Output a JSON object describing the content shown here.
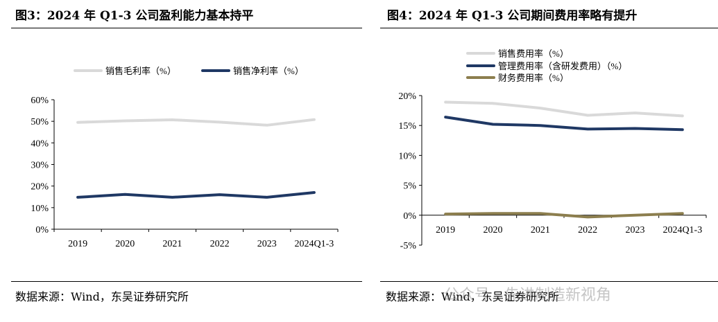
{
  "left": {
    "title": "图3：2024 年 Q1-3 公司盈利能力基本持平",
    "source": "数据来源：Wind，东吴证券研究所",
    "chart_data": {
      "type": "line",
      "categories": [
        "2019",
        "2020",
        "2021",
        "2022",
        "2023",
        "2024Q1-3"
      ],
      "ylim": [
        0,
        60
      ],
      "yticks": [
        0,
        10,
        20,
        30,
        40,
        50,
        60
      ],
      "ytick_labels": [
        "0%",
        "10%",
        "20%",
        "30%",
        "40%",
        "50%",
        "60%"
      ],
      "legend_position": "top",
      "grid": false,
      "series": [
        {
          "name": "销售毛利率（%）",
          "color": "#d9d9d9",
          "values": [
            49.5,
            50.2,
            50.7,
            49.6,
            48.2,
            50.8
          ]
        },
        {
          "name": "销售净利率（%）",
          "color": "#1f3864",
          "values": [
            14.8,
            16.1,
            14.8,
            16.0,
            14.8,
            17.0
          ]
        }
      ]
    }
  },
  "right": {
    "title": "图4：2024 年 Q1-3 公司期间费用率略有提升",
    "source": "数据来源：Wind，东吴证券研究所",
    "chart_data": {
      "type": "line",
      "categories": [
        "2019",
        "2020",
        "2021",
        "2022",
        "2023",
        "2024Q1-3"
      ],
      "ylim": [
        -5,
        20
      ],
      "yticks": [
        -5,
        0,
        5,
        10,
        15,
        20
      ],
      "ytick_labels": [
        "-5%",
        "0%",
        "5%",
        "10%",
        "15%",
        "20%"
      ],
      "legend_position": "top-left",
      "grid": false,
      "series": [
        {
          "name": "销售费用率（%）",
          "color": "#d9d9d9",
          "values": [
            18.9,
            18.7,
            17.9,
            16.7,
            17.1,
            16.6
          ]
        },
        {
          "name": "管理费用率（含研发费用）（%）",
          "color": "#1f3864",
          "values": [
            16.4,
            15.2,
            15.0,
            14.4,
            14.5,
            14.3
          ]
        },
        {
          "name": "财务费用率（%）",
          "color": "#8c7e4e",
          "values": [
            0.2,
            0.3,
            0.3,
            -0.3,
            0.0,
            0.3
          ]
        }
      ]
    }
  },
  "watermark": "公众号 · 先进制造新视角"
}
